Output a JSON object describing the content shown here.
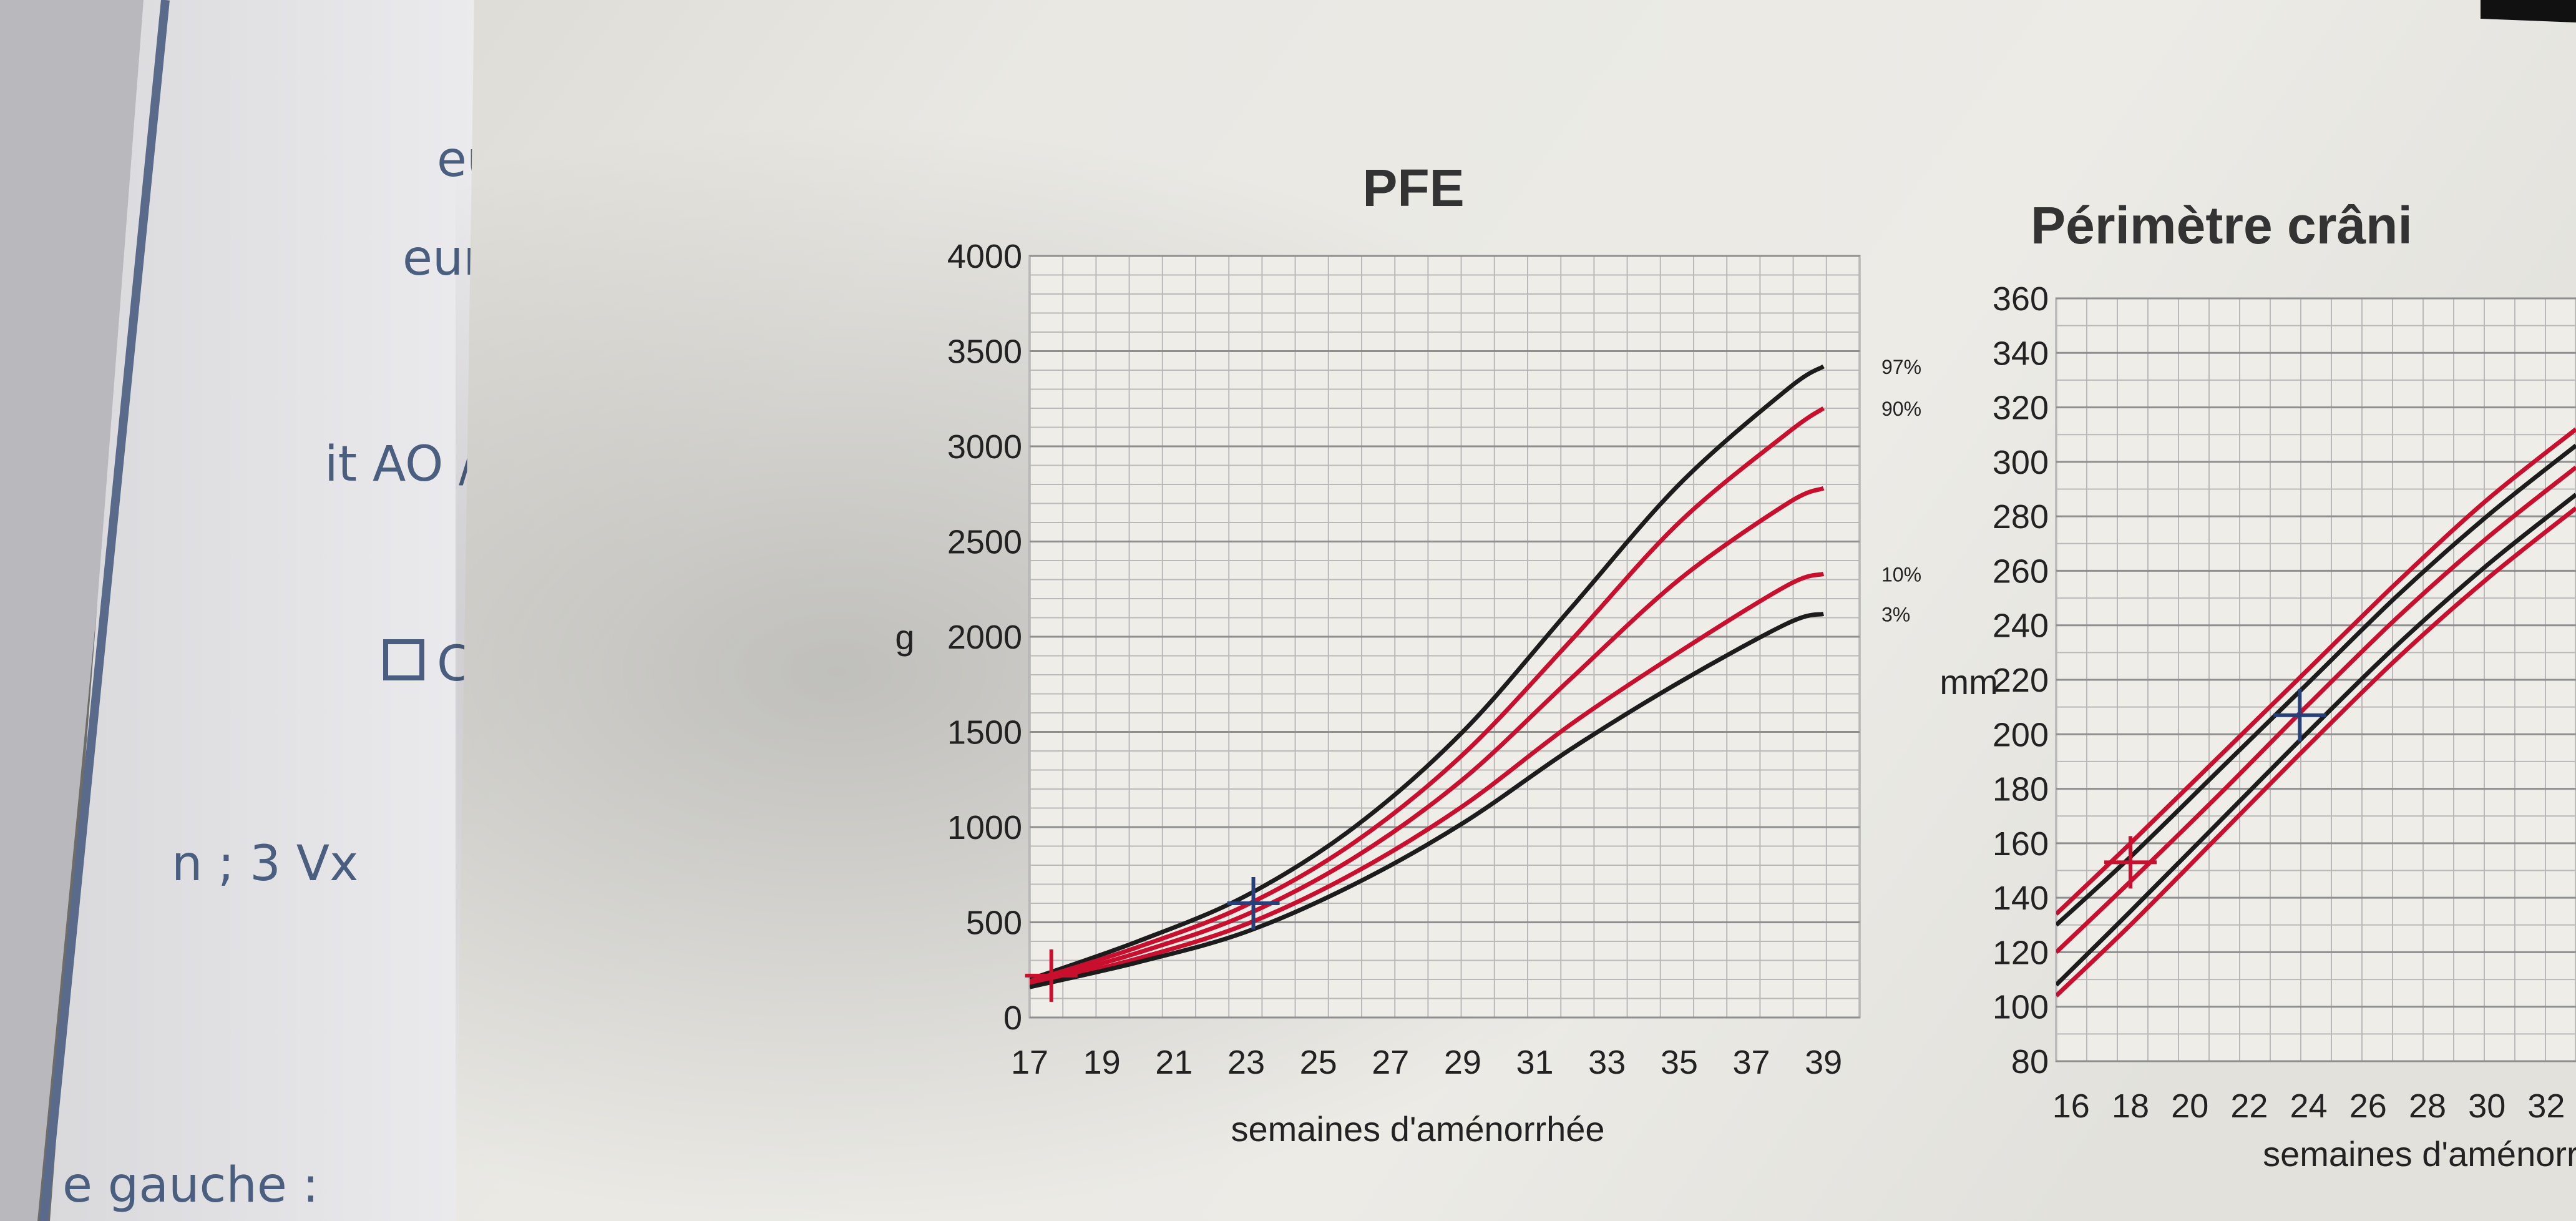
{
  "back_document": {
    "fragments": [
      "eu",
      "eur",
      "it AO /",
      "C",
      "n ; 3 Vx",
      "e gauche :"
    ]
  },
  "colors": {
    "black_curve": "#1c1c1c",
    "red_curve": "#c8102e",
    "marker_blue": "#27407a",
    "marker_red": "#c8102e",
    "grid": "#b9b9b9",
    "paper": "#e9e8e3"
  },
  "chart_data": [
    {
      "type": "line",
      "title": "PFE",
      "xlabel": "semaines d'aménorrhée",
      "ylabel": "g",
      "xlim": [
        17,
        40
      ],
      "ylim": [
        0,
        4000
      ],
      "x_ticks": [
        17,
        19,
        21,
        23,
        25,
        27,
        29,
        31,
        33,
        35,
        37,
        39
      ],
      "y_ticks": [
        0,
        500,
        1000,
        1500,
        2000,
        2500,
        3000,
        3500,
        4000
      ],
      "grid": true,
      "x": [
        17,
        20,
        23,
        26,
        29,
        32,
        35,
        38,
        39
      ],
      "series": [
        {
          "name": "97%",
          "color": "black",
          "values": [
            200,
            400,
            640,
            1000,
            1500,
            2150,
            2800,
            3300,
            3420
          ]
        },
        {
          "name": "90%",
          "color": "red",
          "values": [
            190,
            370,
            590,
            920,
            1380,
            1980,
            2600,
            3070,
            3200
          ]
        },
        {
          "name": "",
          "color": "red",
          "values": [
            180,
            340,
            540,
            840,
            1250,
            1780,
            2300,
            2700,
            2780
          ]
        },
        {
          "name": "10%",
          "color": "red",
          "values": [
            170,
            310,
            490,
            760,
            1110,
            1540,
            1920,
            2270,
            2330
          ]
        },
        {
          "name": "3%",
          "color": "black",
          "values": [
            160,
            290,
            450,
            700,
            1020,
            1410,
            1760,
            2070,
            2120
          ]
        }
      ],
      "markers": [
        {
          "x": 17.6,
          "y": 220,
          "color": "red"
        },
        {
          "x": 23.2,
          "y": 600,
          "color": "blue"
        }
      ]
    },
    {
      "type": "line",
      "title": "Périmètre crâni",
      "xlabel": "semaines d'aménorrhé",
      "ylabel": "mm",
      "xlim": [
        15.5,
        33
      ],
      "ylim": [
        80,
        360
      ],
      "x_ticks": [
        16,
        18,
        20,
        22,
        24,
        26,
        28,
        30,
        32
      ],
      "y_ticks": [
        80,
        100,
        120,
        140,
        160,
        180,
        200,
        220,
        240,
        260,
        280,
        300,
        320,
        340,
        360
      ],
      "grid": true,
      "x": [
        15.5,
        18,
        21,
        24,
        27,
        30,
        33
      ],
      "series": [
        {
          "name": "",
          "color": "red",
          "values": [
            134,
            160,
            192,
            224,
            256,
            286,
            312
          ]
        },
        {
          "name": "",
          "color": "black",
          "values": [
            130,
            155,
            187,
            219,
            251,
            280,
            306
          ]
        },
        {
          "name": "",
          "color": "red",
          "values": [
            120,
            146,
            178,
            211,
            243,
            272,
            298
          ]
        },
        {
          "name": "",
          "color": "black",
          "values": [
            108,
            135,
            168,
            201,
            233,
            262,
            288
          ]
        },
        {
          "name": "",
          "color": "red",
          "values": [
            104,
            130,
            163,
            196,
            228,
            257,
            283
          ]
        }
      ],
      "markers": [
        {
          "x": 18,
          "y": 153,
          "color": "red"
        },
        {
          "x": 23.7,
          "y": 207,
          "color": "blue"
        }
      ]
    }
  ]
}
